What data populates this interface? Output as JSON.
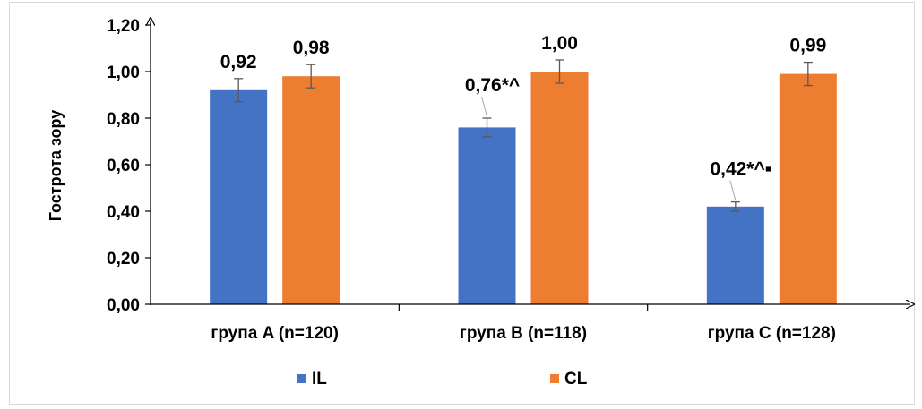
{
  "chart_data": {
    "type": "bar",
    "categories": [
      "група A (n=120)",
      "група B (n=118)",
      "група C (n=128)"
    ],
    "series": [
      {
        "name": "IL",
        "color": "#4472c4",
        "values": [
          0.92,
          0.76,
          0.42
        ],
        "errors": [
          0.05,
          0.04,
          0.02
        ],
        "labels": [
          "0,92",
          "0,76*^",
          "0,42*^▪"
        ]
      },
      {
        "name": "CL",
        "color": "#ed7d31",
        "values": [
          0.98,
          1.0,
          0.99
        ],
        "errors": [
          0.05,
          0.05,
          0.05
        ],
        "labels": [
          "0,98",
          "1,00",
          "0,99"
        ]
      }
    ],
    "ylabel": "Гострота зору",
    "ylim": [
      0,
      1.2
    ],
    "yticks": [
      0,
      0.2,
      0.4,
      0.6,
      0.8,
      1.0,
      1.2
    ],
    "ytick_labels": [
      "0,00",
      "0,20",
      "0,40",
      "0,60",
      "0,80",
      "1,00",
      "1,20"
    ],
    "grid": false,
    "legend": "bottom"
  }
}
